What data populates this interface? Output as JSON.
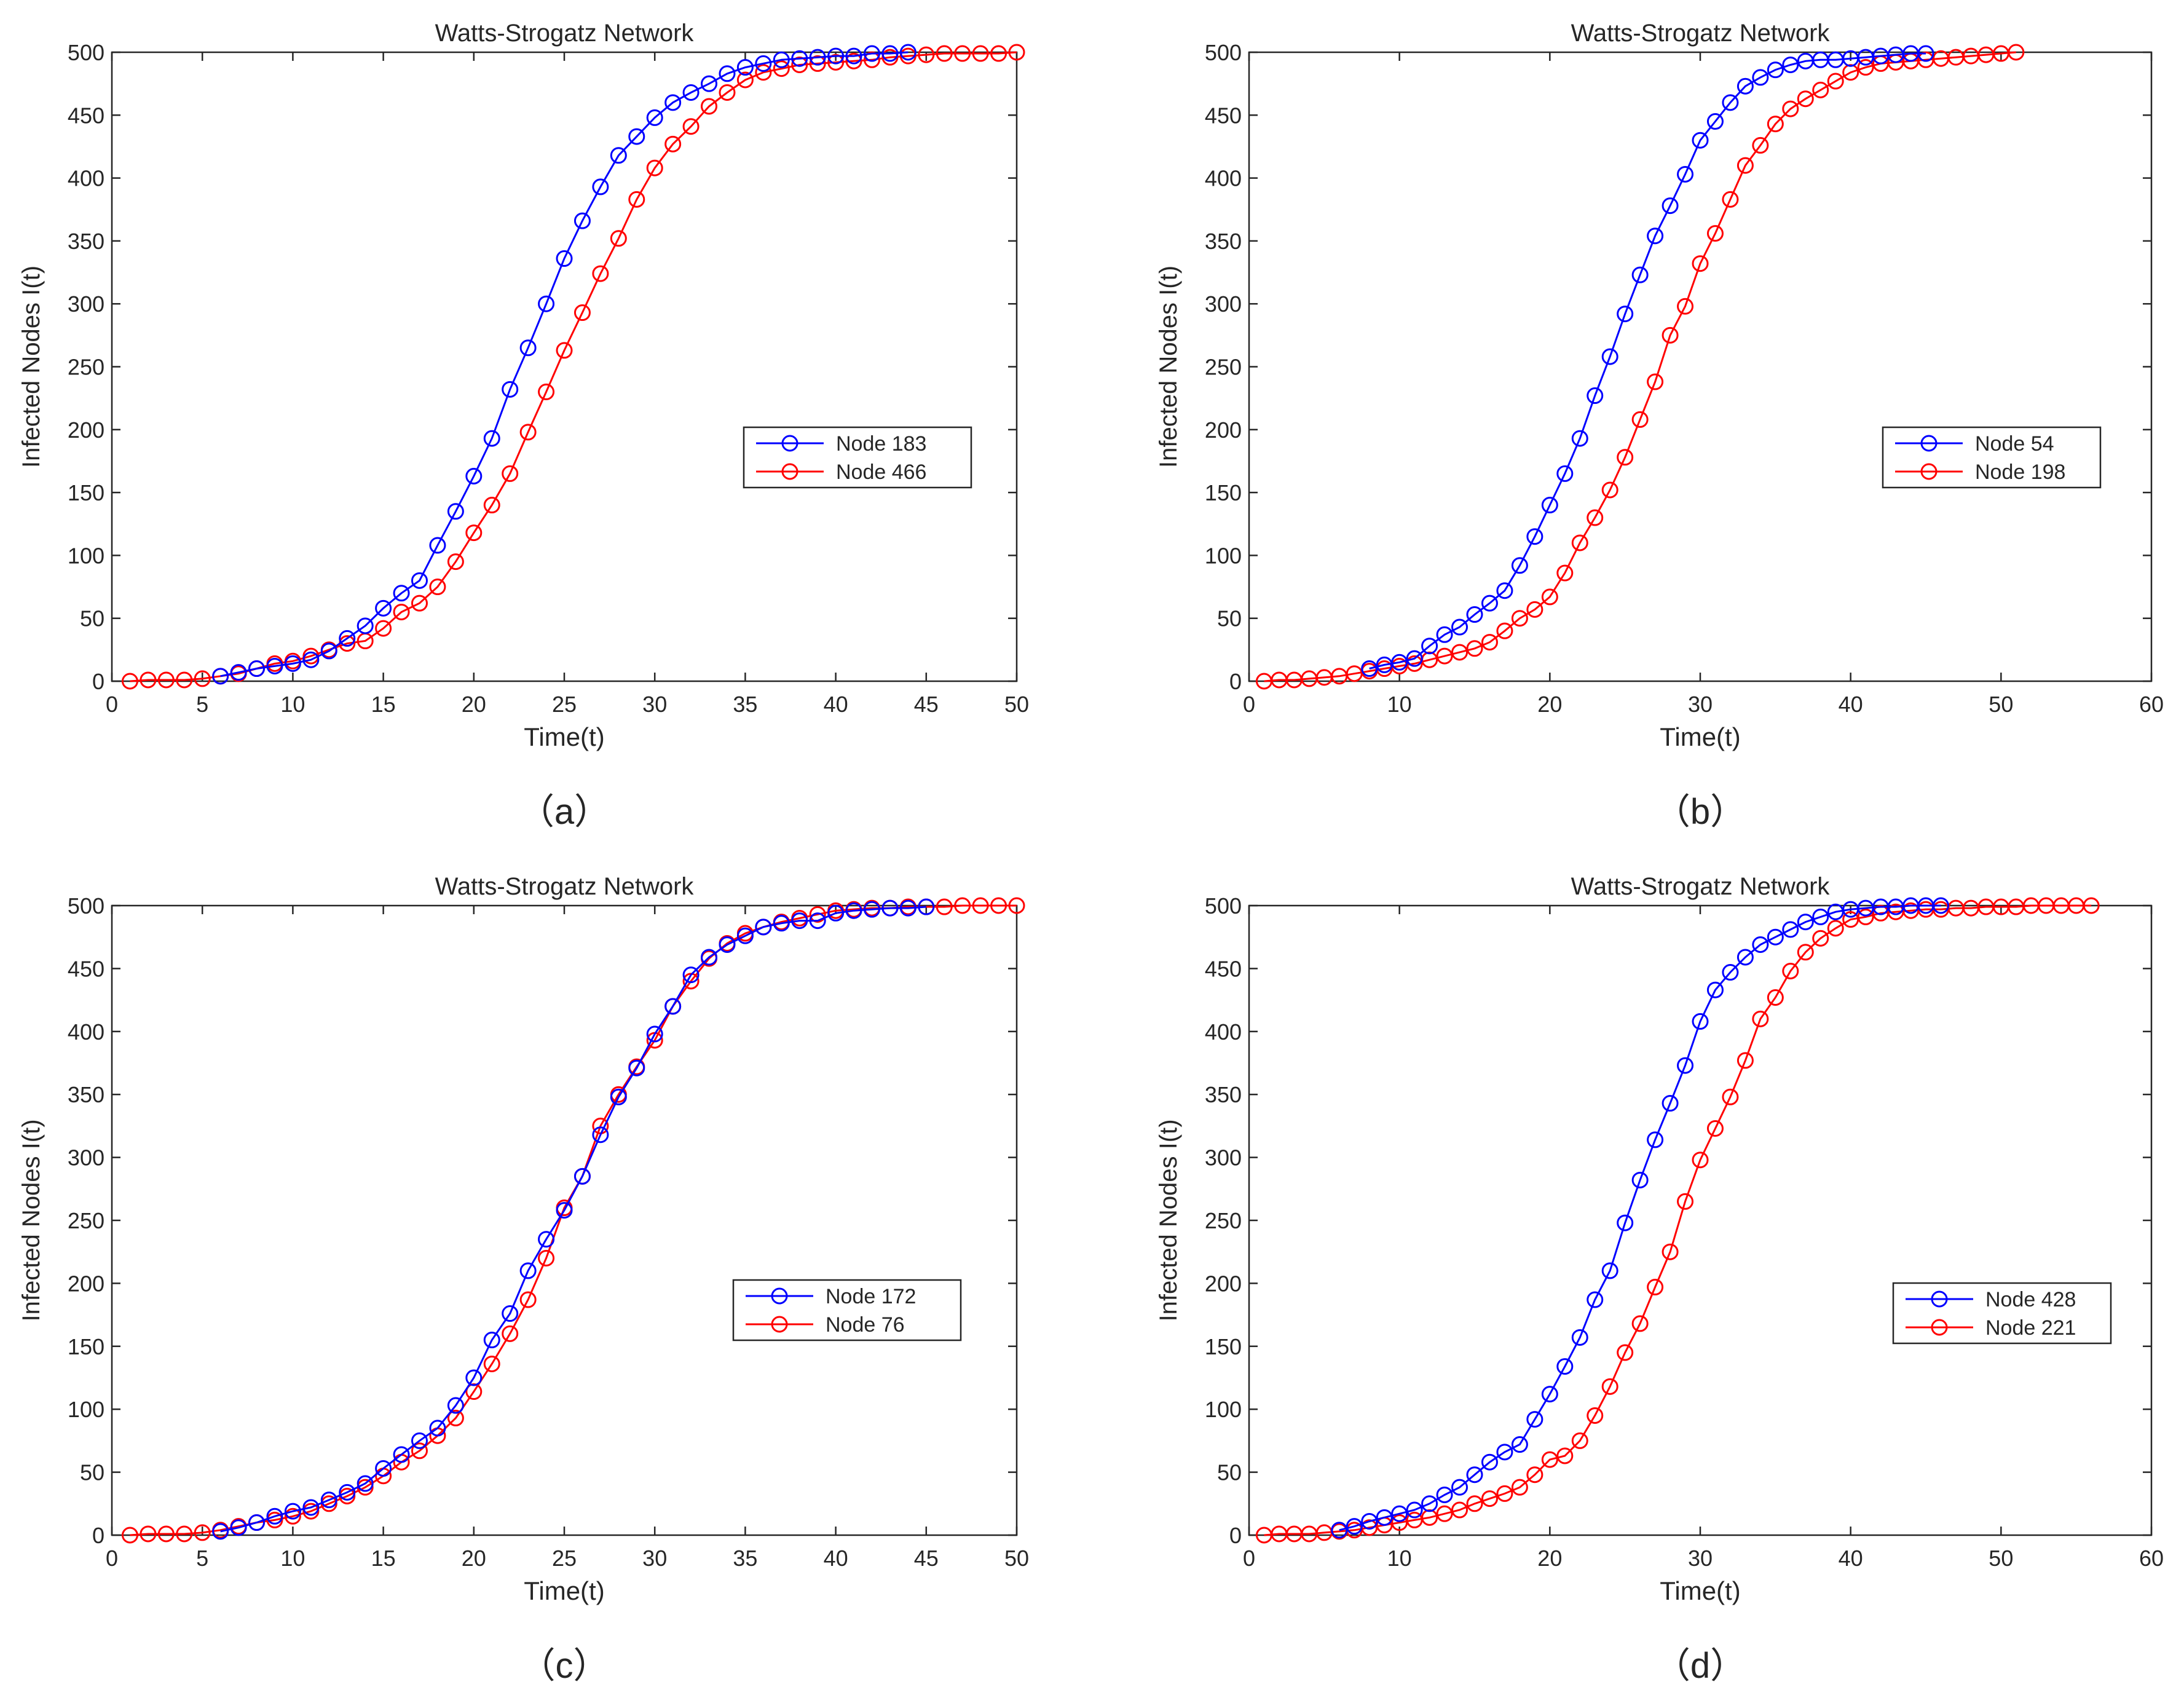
{
  "chart_data": [
    {
      "type": "line",
      "panel_label": "（a）",
      "title": "Watts-Strogatz Network",
      "xlabel": "Time(t)",
      "ylabel": "Infected Nodes I(t)",
      "xlim": [
        0,
        50
      ],
      "ylim": [
        0,
        500
      ],
      "xticks": [
        0,
        5,
        10,
        15,
        20,
        25,
        30,
        35,
        40,
        45,
        50
      ],
      "yticks": [
        0,
        50,
        100,
        150,
        200,
        250,
        300,
        350,
        400,
        450,
        500
      ],
      "grid": false,
      "legend_position": "center-right",
      "series": [
        {
          "name": "Node 183",
          "color": "#0000ff",
          "marker": "circle",
          "x": [
            6,
            7,
            8,
            9,
            10,
            11,
            12,
            13,
            14,
            15,
            16,
            17,
            18,
            19,
            20,
            21,
            22,
            23,
            24,
            25,
            26,
            27,
            28,
            29,
            30,
            31,
            32,
            33,
            34,
            35,
            36,
            37,
            38,
            39,
            40,
            41,
            42,
            43,
            44
          ],
          "y": [
            4,
            7,
            10,
            12,
            14,
            17,
            24,
            34,
            44,
            58,
            70,
            80,
            108,
            135,
            163,
            193,
            232,
            265,
            300,
            336,
            366,
            393,
            418,
            433,
            448,
            460,
            468,
            475,
            483,
            488,
            491,
            494,
            495,
            496,
            497,
            497,
            499,
            499,
            500
          ]
        },
        {
          "name": "Node 466",
          "color": "#ff0000",
          "marker": "circle",
          "x": [
            1,
            2,
            3,
            4,
            5,
            6,
            7,
            8,
            9,
            10,
            11,
            12,
            13,
            14,
            15,
            16,
            17,
            18,
            19,
            20,
            21,
            22,
            23,
            24,
            25,
            26,
            27,
            28,
            29,
            30,
            31,
            32,
            33,
            34,
            35,
            36,
            37,
            38,
            39,
            40,
            41,
            42,
            43,
            44,
            45,
            46,
            47,
            48,
            49,
            50
          ],
          "y": [
            0,
            1,
            1,
            1,
            2,
            4,
            6,
            10,
            14,
            16,
            20,
            25,
            30,
            32,
            42,
            55,
            62,
            75,
            95,
            118,
            140,
            165,
            198,
            230,
            263,
            293,
            324,
            352,
            383,
            408,
            427,
            441,
            457,
            468,
            478,
            484,
            487,
            490,
            491,
            492,
            493,
            494,
            496,
            497,
            498,
            499,
            499,
            499,
            499,
            500
          ]
        }
      ]
    },
    {
      "type": "line",
      "panel_label": "（b）",
      "title": "Watts-Strogatz Network",
      "xlabel": "Time(t)",
      "ylabel": "Infected Nodes I(t)",
      "xlim": [
        0,
        60
      ],
      "ylim": [
        0,
        500
      ],
      "xticks": [
        0,
        10,
        20,
        30,
        40,
        50,
        60
      ],
      "yticks": [
        0,
        50,
        100,
        150,
        200,
        250,
        300,
        350,
        400,
        450,
        500
      ],
      "grid": false,
      "legend_position": "center-right",
      "series": [
        {
          "name": "Node 54",
          "color": "#0000ff",
          "marker": "circle",
          "x": [
            8,
            9,
            10,
            11,
            12,
            13,
            14,
            15,
            16,
            17,
            18,
            19,
            20,
            21,
            22,
            23,
            24,
            25,
            26,
            27,
            28,
            29,
            30,
            31,
            32,
            33,
            34,
            35,
            36,
            37,
            38,
            39,
            40,
            41,
            42,
            43,
            44,
            45
          ],
          "y": [
            10,
            13,
            15,
            18,
            28,
            37,
            43,
            53,
            62,
            72,
            92,
            115,
            140,
            165,
            193,
            227,
            258,
            292,
            323,
            354,
            378,
            403,
            430,
            445,
            460,
            473,
            480,
            486,
            490,
            493,
            494,
            494,
            495,
            496,
            497,
            498,
            499,
            499
          ]
        },
        {
          "name": "Node 198",
          "color": "#ff0000",
          "marker": "circle",
          "x": [
            1,
            2,
            3,
            4,
            5,
            6,
            7,
            8,
            9,
            10,
            11,
            12,
            13,
            14,
            15,
            16,
            17,
            18,
            19,
            20,
            21,
            22,
            23,
            24,
            25,
            26,
            27,
            28,
            29,
            30,
            31,
            32,
            33,
            34,
            35,
            36,
            37,
            38,
            39,
            40,
            41,
            42,
            43,
            44,
            45,
            46,
            47,
            48,
            49,
            50,
            51
          ],
          "y": [
            0,
            1,
            1,
            2,
            3,
            4,
            6,
            8,
            10,
            12,
            14,
            17,
            20,
            23,
            26,
            31,
            40,
            50,
            57,
            67,
            86,
            110,
            130,
            152,
            178,
            208,
            238,
            275,
            298,
            332,
            356,
            383,
            410,
            426,
            443,
            455,
            463,
            470,
            477,
            484,
            488,
            491,
            492,
            493,
            494,
            495,
            496,
            497,
            498,
            499,
            500
          ]
        }
      ]
    },
    {
      "type": "line",
      "panel_label": "（c）",
      "title": "Watts-Strogatz Network",
      "xlabel": "Time(t)",
      "ylabel": "Infected Nodes I(t)",
      "xlim": [
        0,
        50
      ],
      "ylim": [
        0,
        500
      ],
      "xticks": [
        0,
        5,
        10,
        15,
        20,
        25,
        30,
        35,
        40,
        45,
        50
      ],
      "yticks": [
        0,
        50,
        100,
        150,
        200,
        250,
        300,
        350,
        400,
        450,
        500
      ],
      "grid": false,
      "legend_position": "center-right",
      "series": [
        {
          "name": "Node 172",
          "color": "#0000ff",
          "marker": "circle",
          "x": [
            6,
            7,
            8,
            9,
            10,
            11,
            12,
            13,
            14,
            15,
            16,
            17,
            18,
            19,
            20,
            21,
            22,
            23,
            24,
            25,
            26,
            27,
            28,
            29,
            30,
            31,
            32,
            33,
            34,
            35,
            36,
            37,
            38,
            39,
            40,
            41,
            42,
            43,
            44,
            45
          ],
          "y": [
            3,
            6,
            10,
            15,
            19,
            22,
            28,
            34,
            41,
            53,
            64,
            75,
            85,
            103,
            125,
            155,
            176,
            210,
            235,
            258,
            285,
            318,
            348,
            371,
            398,
            420,
            445,
            459,
            469,
            476,
            483,
            486,
            488,
            488,
            494,
            496,
            497,
            498,
            498,
            499
          ]
        },
        {
          "name": "Node 76",
          "color": "#ff0000",
          "marker": "circle",
          "x": [
            1,
            2,
            3,
            4,
            5,
            6,
            7,
            8,
            9,
            10,
            11,
            12,
            13,
            14,
            15,
            16,
            17,
            18,
            19,
            20,
            21,
            22,
            23,
            24,
            25,
            26,
            27,
            28,
            29,
            30,
            31,
            32,
            33,
            34,
            35,
            36,
            37,
            38,
            39,
            40,
            41,
            42,
            43,
            44,
            45,
            46,
            47,
            48,
            49,
            50
          ],
          "y": [
            0,
            1,
            1,
            1,
            2,
            4,
            7,
            10,
            12,
            15,
            19,
            25,
            31,
            38,
            47,
            58,
            67,
            79,
            93,
            114,
            136,
            160,
            187,
            220,
            260,
            285,
            325,
            350,
            372,
            393,
            420,
            440,
            458,
            470,
            478,
            483,
            487,
            490,
            493,
            496,
            497,
            498,
            498,
            499,
            499,
            499,
            500,
            500,
            500,
            500
          ]
        }
      ]
    },
    {
      "type": "line",
      "panel_label": "（d）",
      "title": "Watts-Strogatz Network",
      "xlabel": "Time(t)",
      "ylabel": "Infected Nodes I(t)",
      "xlim": [
        0,
        60
      ],
      "ylim": [
        0,
        500
      ],
      "xticks": [
        0,
        10,
        20,
        30,
        40,
        50,
        60
      ],
      "yticks": [
        0,
        50,
        100,
        150,
        200,
        250,
        300,
        350,
        400,
        450,
        500
      ],
      "grid": false,
      "legend_position": "center-right",
      "series": [
        {
          "name": "Node 428",
          "color": "#0000ff",
          "marker": "circle",
          "x": [
            6,
            7,
            8,
            9,
            10,
            11,
            12,
            13,
            14,
            15,
            16,
            17,
            18,
            19,
            20,
            21,
            22,
            23,
            24,
            25,
            26,
            27,
            28,
            29,
            30,
            31,
            32,
            33,
            34,
            35,
            36,
            37,
            38,
            39,
            40,
            41,
            42,
            43,
            44,
            45,
            46
          ],
          "y": [
            4,
            7,
            11,
            14,
            17,
            20,
            25,
            32,
            38,
            48,
            58,
            66,
            72,
            92,
            112,
            134,
            157,
            187,
            210,
            248,
            282,
            314,
            343,
            373,
            408,
            433,
            447,
            459,
            469,
            475,
            481,
            487,
            491,
            495,
            497,
            498,
            499,
            499,
            500,
            500,
            500
          ]
        },
        {
          "name": "Node 221",
          "color": "#ff0000",
          "marker": "circle",
          "x": [
            1,
            2,
            3,
            4,
            5,
            6,
            7,
            8,
            9,
            10,
            11,
            12,
            13,
            14,
            15,
            16,
            17,
            18,
            19,
            20,
            21,
            22,
            23,
            24,
            25,
            26,
            27,
            28,
            29,
            30,
            31,
            32,
            33,
            34,
            35,
            36,
            37,
            38,
            39,
            40,
            41,
            42,
            43,
            44,
            45,
            46,
            47,
            48,
            49,
            50,
            51,
            52,
            53,
            54,
            55,
            56
          ],
          "y": [
            0,
            1,
            1,
            1,
            2,
            3,
            4,
            6,
            8,
            10,
            12,
            14,
            17,
            20,
            25,
            29,
            33,
            38,
            48,
            60,
            63,
            75,
            95,
            118,
            145,
            168,
            197,
            225,
            265,
            298,
            323,
            348,
            377,
            410,
            427,
            448,
            463,
            474,
            482,
            489,
            491,
            494,
            495,
            496,
            497,
            497,
            498,
            498,
            499,
            499,
            499,
            500,
            500,
            500,
            500,
            500
          ]
        }
      ]
    }
  ]
}
